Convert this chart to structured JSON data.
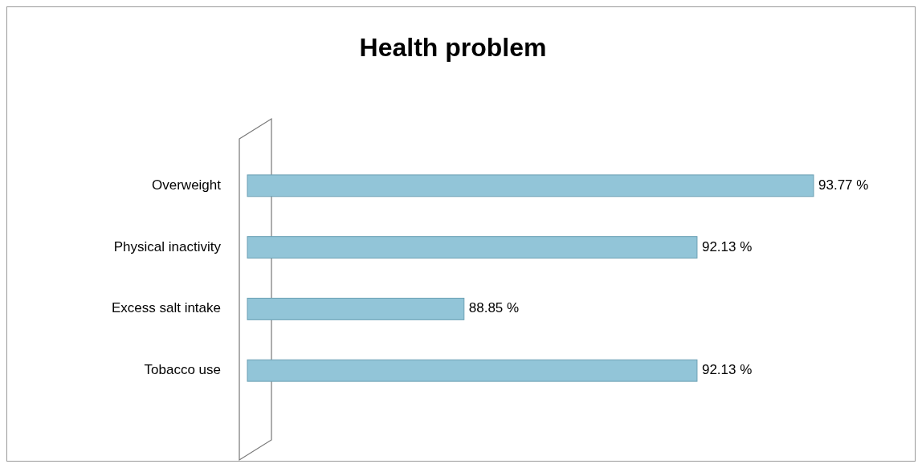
{
  "chart_data": {
    "type": "bar",
    "orientation": "horizontal",
    "title": "Health problem",
    "categories": [
      "Overweight",
      "Physical inactivity",
      "Excess salt intake",
      "Tobacco use"
    ],
    "values": [
      93.77,
      92.13,
      88.85,
      92.13
    ],
    "value_labels": [
      "93.77 %",
      "92.13 %",
      "88.85 %",
      "92.13 %"
    ],
    "color": "#92c5d8",
    "xlim": [
      85.8,
      95.2
    ],
    "tick_labels": "y"
  }
}
